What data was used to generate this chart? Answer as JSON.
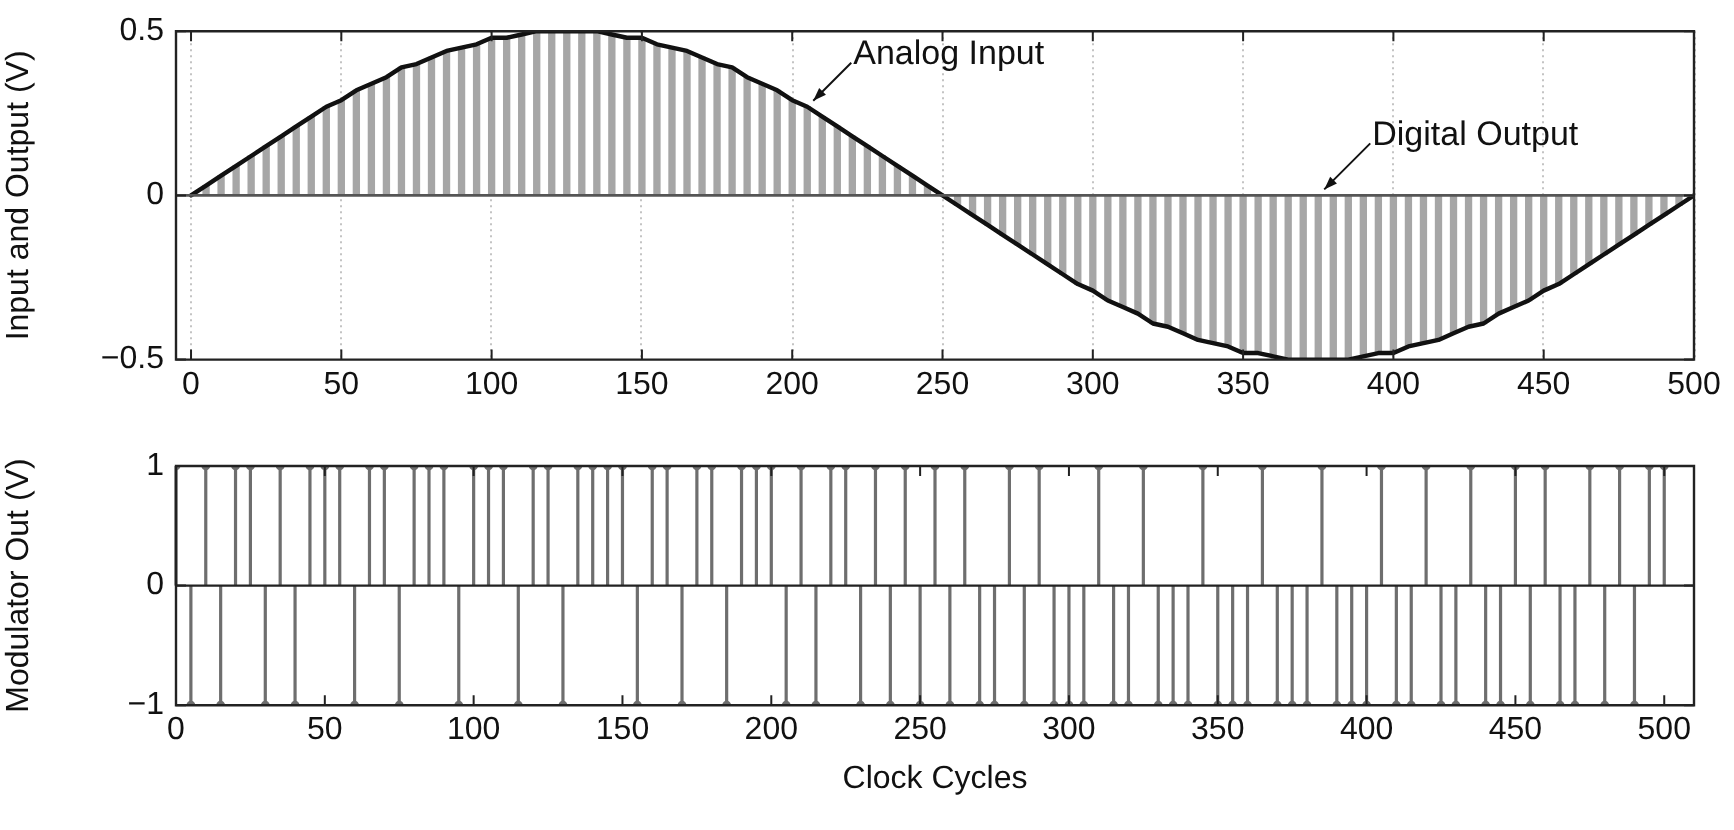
{
  "chart_data": [
    {
      "type": "line",
      "ylabel": "Input and Output (V)",
      "legend": false,
      "grid": "x",
      "x": [
        0,
        5,
        10,
        15,
        20,
        25,
        30,
        35,
        40,
        45,
        50,
        55,
        60,
        65,
        70,
        75,
        80,
        85,
        90,
        95,
        100,
        105,
        110,
        115,
        120,
        125,
        130,
        135,
        140,
        145,
        150,
        155,
        160,
        165,
        170,
        175,
        180,
        185,
        190,
        195,
        200,
        205,
        210,
        215,
        220,
        225,
        230,
        235,
        240,
        245,
        250,
        255,
        260,
        265,
        270,
        275,
        280,
        285,
        290,
        295,
        300,
        305,
        310,
        315,
        320,
        325,
        330,
        335,
        340,
        345,
        350,
        355,
        360,
        365,
        370,
        375,
        380,
        385,
        390,
        395,
        400,
        405,
        410,
        415,
        420,
        425,
        430,
        435,
        440,
        445,
        450,
        455,
        460,
        465,
        470,
        475,
        480,
        485,
        490,
        495,
        500
      ],
      "series": [
        {
          "name": "Digital Output",
          "type": "bar",
          "color": "#a6a6a6",
          "values": [
            0,
            0.03,
            0.06,
            0.09,
            0.12,
            0.15,
            0.18,
            0.21,
            0.24,
            0.27,
            0.29,
            0.32,
            0.34,
            0.36,
            0.39,
            0.4,
            0.42,
            0.44,
            0.45,
            0.46,
            0.48,
            0.48,
            0.49,
            0.5,
            0.5,
            0.5,
            0.5,
            0.5,
            0.49,
            0.48,
            0.48,
            0.46,
            0.45,
            0.44,
            0.42,
            0.4,
            0.39,
            0.36,
            0.34,
            0.32,
            0.29,
            0.27,
            0.24,
            0.21,
            0.18,
            0.15,
            0.12,
            0.09,
            0.06,
            0.03,
            0,
            -0.03,
            -0.06,
            -0.09,
            -0.12,
            -0.15,
            -0.18,
            -0.21,
            -0.24,
            -0.27,
            -0.29,
            -0.32,
            -0.34,
            -0.36,
            -0.39,
            -0.4,
            -0.42,
            -0.44,
            -0.45,
            -0.46,
            -0.48,
            -0.48,
            -0.49,
            -0.5,
            -0.5,
            -0.5,
            -0.5,
            -0.5,
            -0.49,
            -0.48,
            -0.48,
            -0.46,
            -0.45,
            -0.44,
            -0.42,
            -0.4,
            -0.39,
            -0.36,
            -0.34,
            -0.32,
            -0.29,
            -0.27,
            -0.24,
            -0.21,
            -0.18,
            -0.15,
            -0.12,
            -0.09,
            -0.06,
            -0.03,
            0
          ]
        },
        {
          "name": "Analog Input",
          "color": "#111111",
          "values": [
            0,
            0.03,
            0.06,
            0.09,
            0.12,
            0.15,
            0.18,
            0.21,
            0.24,
            0.27,
            0.29,
            0.32,
            0.34,
            0.36,
            0.39,
            0.4,
            0.42,
            0.44,
            0.45,
            0.46,
            0.48,
            0.48,
            0.49,
            0.5,
            0.5,
            0.5,
            0.5,
            0.5,
            0.49,
            0.48,
            0.48,
            0.46,
            0.45,
            0.44,
            0.42,
            0.4,
            0.39,
            0.36,
            0.34,
            0.32,
            0.29,
            0.27,
            0.24,
            0.21,
            0.18,
            0.15,
            0.12,
            0.09,
            0.06,
            0.03,
            0,
            -0.03,
            -0.06,
            -0.09,
            -0.12,
            -0.15,
            -0.18,
            -0.21,
            -0.24,
            -0.27,
            -0.29,
            -0.32,
            -0.34,
            -0.36,
            -0.39,
            -0.4,
            -0.42,
            -0.44,
            -0.45,
            -0.46,
            -0.48,
            -0.48,
            -0.49,
            -0.5,
            -0.5,
            -0.5,
            -0.5,
            -0.5,
            -0.49,
            -0.48,
            -0.48,
            -0.46,
            -0.45,
            -0.44,
            -0.42,
            -0.4,
            -0.39,
            -0.36,
            -0.34,
            -0.32,
            -0.29,
            -0.27,
            -0.24,
            -0.21,
            -0.18,
            -0.15,
            -0.12,
            -0.09,
            -0.06,
            -0.03,
            0
          ]
        }
      ],
      "xlim": [
        -5,
        500
      ],
      "xticks": [
        0,
        50,
        100,
        150,
        200,
        250,
        300,
        350,
        400,
        450,
        500
      ],
      "ylim": [
        -0.5,
        0.5
      ],
      "yticks": [
        {
          "value": -0.5,
          "label": "−0.5"
        },
        0,
        0.5
      ]
    },
    {
      "type": "lollipop",
      "xlabel": "Clock Cycles",
      "ylabel": "Modulator Out (V)",
      "legend": false,
      "marker": "circle",
      "color": "#6e6e6e",
      "x": [
        0,
        5,
        10,
        15,
        20,
        25,
        30,
        35,
        40,
        45,
        50,
        55,
        60,
        65,
        70,
        75,
        80,
        85,
        90,
        95,
        100,
        105,
        110,
        115,
        120,
        125,
        130,
        135,
        140,
        145,
        150,
        155,
        160,
        165,
        170,
        175,
        180,
        185,
        190,
        195,
        200,
        205,
        210,
        215,
        220,
        225,
        230,
        235,
        240,
        245,
        250,
        255,
        260,
        265,
        270,
        275,
        280,
        285,
        290,
        295,
        300,
        305,
        310,
        315,
        320,
        325,
        330,
        335,
        340,
        345,
        350,
        355,
        360,
        365,
        370,
        375,
        380,
        385,
        390,
        395,
        400,
        405,
        410,
        415,
        420,
        425,
        430,
        435,
        440,
        445,
        450,
        455,
        460,
        465,
        470,
        475,
        480,
        485,
        490,
        495,
        500
      ],
      "values": [
        1,
        -1,
        1,
        -1,
        1,
        1,
        -1,
        1,
        -1,
        1,
        1,
        1,
        -1,
        1,
        1,
        -1,
        1,
        1,
        1,
        -1,
        1,
        1,
        1,
        -1,
        1,
        1,
        -1,
        1,
        1,
        1,
        1,
        -1,
        1,
        1,
        -1,
        1,
        1,
        -1,
        1,
        1,
        1,
        -1,
        1,
        -1,
        1,
        1,
        -1,
        1,
        -1,
        1,
        -1,
        1,
        -1,
        1,
        -1,
        -1,
        1,
        -1,
        1,
        -1,
        -1,
        -1,
        1,
        -1,
        -1,
        1,
        -1,
        -1,
        -1,
        1,
        -1,
        -1,
        -1,
        1,
        -1,
        -1,
        -1,
        1,
        -1,
        -1,
        -1,
        1,
        -1,
        -1,
        1,
        -1,
        -1,
        1,
        -1,
        -1,
        1,
        -1,
        1,
        -1,
        -1,
        1,
        -1,
        1,
        -1,
        1,
        1
      ],
      "xlim": [
        0,
        510
      ],
      "xticks": [
        0,
        50,
        100,
        150,
        200,
        250,
        300,
        350,
        400,
        450,
        500
      ],
      "ylim": [
        -1,
        1
      ],
      "yticks": [
        {
          "value": -1,
          "label": "−1"
        },
        0,
        1
      ]
    }
  ]
}
